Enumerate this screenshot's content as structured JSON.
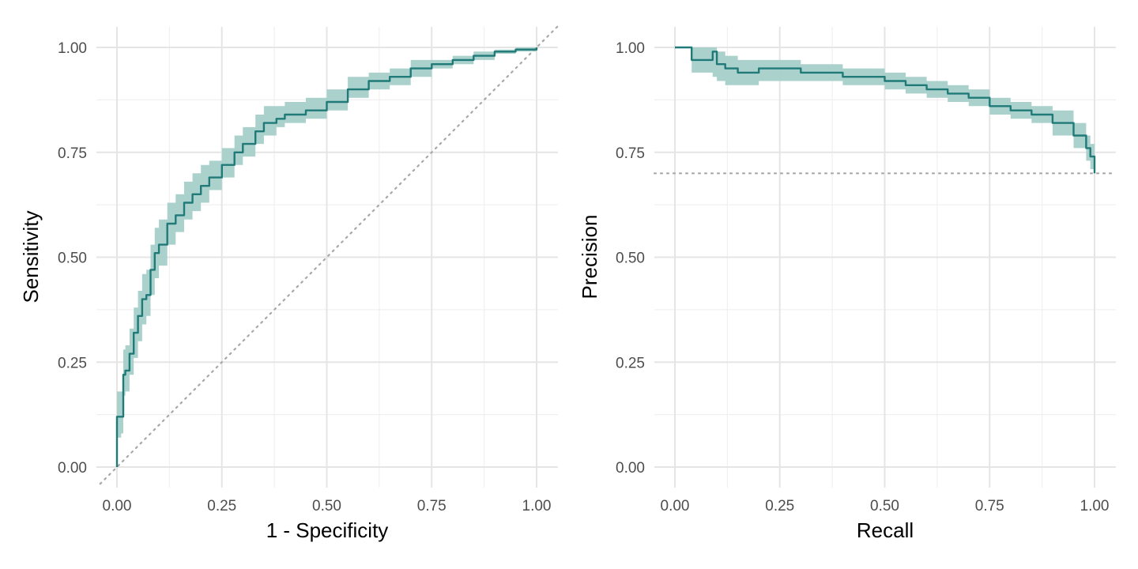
{
  "colors": {
    "line": "#1f7a78",
    "band": "#a7cfca",
    "reference": "#a8a8a8",
    "grid": "#e5e5e5"
  },
  "chart_data": [
    {
      "type": "line",
      "name": "roc",
      "xlabel": "1 - Specificity",
      "ylabel": "Sensitivity",
      "xlim": [
        -0.04,
        1.05
      ],
      "ylim": [
        -0.04,
        1.05
      ],
      "x_ticks": [
        "0.00",
        "0.25",
        "0.50",
        "0.75",
        "1.00"
      ],
      "y_ticks": [
        "0.00",
        "0.25",
        "0.50",
        "0.75",
        "1.00"
      ],
      "tick_values": [
        0,
        0.25,
        0.5,
        0.75,
        1
      ],
      "grid": true,
      "reference_line": {
        "type": "diagonal",
        "from": [
          -0.04,
          -0.04
        ],
        "to": [
          1.05,
          1.05
        ]
      },
      "curve": {
        "x": [
          0,
          0,
          0.01,
          0.015,
          0.02,
          0.03,
          0.04,
          0.05,
          0.06,
          0.07,
          0.08,
          0.09,
          0.1,
          0.12,
          0.14,
          0.16,
          0.18,
          0.2,
          0.22,
          0.25,
          0.28,
          0.3,
          0.33,
          0.35,
          0.38,
          0.4,
          0.45,
          0.5,
          0.55,
          0.6,
          0.65,
          0.7,
          0.75,
          0.8,
          0.85,
          0.9,
          0.95,
          1.0
        ],
        "y": [
          0,
          0.12,
          0.12,
          0.22,
          0.23,
          0.27,
          0.32,
          0.36,
          0.4,
          0.41,
          0.47,
          0.51,
          0.53,
          0.58,
          0.6,
          0.63,
          0.65,
          0.67,
          0.69,
          0.72,
          0.75,
          0.77,
          0.8,
          0.82,
          0.83,
          0.84,
          0.85,
          0.87,
          0.9,
          0.92,
          0.93,
          0.95,
          0.96,
          0.97,
          0.98,
          0.99,
          0.995,
          1.0
        ]
      },
      "band": {
        "lower": [
          0,
          0.07,
          0.08,
          0.17,
          0.18,
          0.22,
          0.26,
          0.3,
          0.34,
          0.36,
          0.41,
          0.45,
          0.48,
          0.53,
          0.56,
          0.59,
          0.61,
          0.63,
          0.66,
          0.69,
          0.72,
          0.74,
          0.77,
          0.79,
          0.81,
          0.82,
          0.83,
          0.85,
          0.88,
          0.9,
          0.91,
          0.93,
          0.95,
          0.96,
          0.97,
          0.985,
          0.99,
          1.0
        ],
        "upper": [
          0,
          0.18,
          0.18,
          0.28,
          0.29,
          0.33,
          0.38,
          0.42,
          0.46,
          0.47,
          0.53,
          0.57,
          0.59,
          0.63,
          0.65,
          0.68,
          0.7,
          0.72,
          0.73,
          0.76,
          0.79,
          0.81,
          0.84,
          0.86,
          0.86,
          0.87,
          0.88,
          0.9,
          0.93,
          0.94,
          0.95,
          0.97,
          0.97,
          0.98,
          0.99,
          0.995,
          1.0,
          1.0
        ]
      }
    },
    {
      "type": "line",
      "name": "precision-recall",
      "xlabel": "Recall",
      "ylabel": "Precision",
      "xlim": [
        -0.04,
        1.05
      ],
      "ylim": [
        -0.04,
        1.05
      ],
      "x_ticks": [
        "0.00",
        "0.25",
        "0.50",
        "0.75",
        "1.00"
      ],
      "y_ticks": [
        "0.00",
        "0.25",
        "0.50",
        "0.75",
        "1.00"
      ],
      "tick_values": [
        0,
        0.25,
        0.5,
        0.75,
        1
      ],
      "grid": true,
      "reference_line": {
        "type": "horizontal",
        "y": 0.7
      },
      "curve": {
        "x": [
          0,
          0.04,
          0.04,
          0.09,
          0.1,
          0.12,
          0.15,
          0.2,
          0.25,
          0.3,
          0.35,
          0.4,
          0.45,
          0.5,
          0.55,
          0.6,
          0.65,
          0.7,
          0.75,
          0.8,
          0.85,
          0.9,
          0.95,
          0.98,
          0.99,
          1.0
        ],
        "y": [
          1.0,
          1.0,
          0.97,
          0.99,
          0.96,
          0.95,
          0.94,
          0.95,
          0.95,
          0.94,
          0.94,
          0.93,
          0.93,
          0.92,
          0.91,
          0.9,
          0.89,
          0.88,
          0.86,
          0.85,
          0.84,
          0.82,
          0.79,
          0.76,
          0.74,
          0.7
        ]
      },
      "band": {
        "lower": [
          1.0,
          0.99,
          0.94,
          0.93,
          0.92,
          0.91,
          0.91,
          0.92,
          0.92,
          0.92,
          0.92,
          0.91,
          0.91,
          0.9,
          0.89,
          0.88,
          0.87,
          0.86,
          0.84,
          0.83,
          0.82,
          0.79,
          0.76,
          0.73,
          0.71,
          0.68
        ],
        "upper": [
          1.0,
          1.0,
          1.0,
          1.0,
          0.99,
          0.98,
          0.97,
          0.97,
          0.97,
          0.96,
          0.96,
          0.95,
          0.95,
          0.94,
          0.93,
          0.92,
          0.91,
          0.9,
          0.88,
          0.87,
          0.86,
          0.85,
          0.82,
          0.79,
          0.77,
          0.73
        ]
      }
    }
  ]
}
